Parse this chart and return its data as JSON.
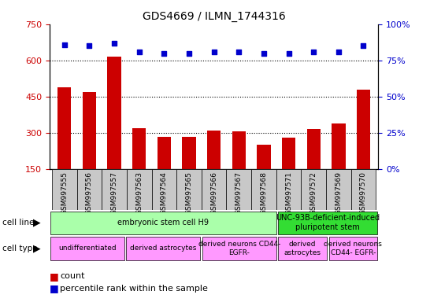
{
  "title": "GDS4669 / ILMN_1744316",
  "samples": [
    "GSM997555",
    "GSM997556",
    "GSM997557",
    "GSM997563",
    "GSM997564",
    "GSM997565",
    "GSM997566",
    "GSM997567",
    "GSM997568",
    "GSM997571",
    "GSM997572",
    "GSM997569",
    "GSM997570"
  ],
  "counts": [
    490,
    470,
    615,
    320,
    285,
    285,
    310,
    305,
    250,
    280,
    315,
    340,
    480
  ],
  "percentiles": [
    86,
    85,
    87,
    81,
    80,
    80,
    81,
    81,
    80,
    80,
    81,
    81,
    85
  ],
  "ylim_left": [
    150,
    750
  ],
  "ylim_right": [
    0,
    100
  ],
  "yticks_left": [
    150,
    300,
    450,
    600,
    750
  ],
  "yticks_right": [
    0,
    25,
    50,
    75,
    100
  ],
  "bar_color": "#cc0000",
  "dot_color": "#0000cc",
  "tick_bg_color": "#c8c8c8",
  "cell_line_groups": [
    {
      "label": "embryonic stem cell H9",
      "start": 0,
      "end": 9,
      "color": "#aaffaa"
    },
    {
      "label": "UNC-93B-deficient-induced\npluripotent stem",
      "start": 9,
      "end": 13,
      "color": "#33dd33"
    }
  ],
  "cell_type_groups": [
    {
      "label": "undifferentiated",
      "start": 0,
      "end": 3,
      "color": "#ff99ff"
    },
    {
      "label": "derived astrocytes",
      "start": 3,
      "end": 6,
      "color": "#ff99ff"
    },
    {
      "label": "derived neurons CD44-\nEGFR-",
      "start": 6,
      "end": 9,
      "color": "#ff99ff"
    },
    {
      "label": "derived\nastrocytes",
      "start": 9,
      "end": 11,
      "color": "#ff99ff"
    },
    {
      "label": "derived neurons\nCD44- EGFR-",
      "start": 11,
      "end": 13,
      "color": "#ff99ff"
    }
  ],
  "bar_width": 0.55,
  "grid_yticks": [
    300,
    450,
    600
  ],
  "figsize": [
    5.46,
    3.84
  ],
  "dpi": 100
}
